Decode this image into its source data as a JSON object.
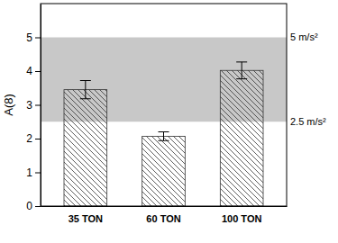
{
  "chart_data": {
    "type": "bar",
    "y_label": "A(8)",
    "categories": [
      "35 TON",
      "60 TON",
      "100 TON"
    ],
    "values": [
      3.45,
      2.07,
      4.02
    ],
    "errors": [
      0.27,
      0.13,
      0.25
    ],
    "color": "#333333",
    "ylim": [
      0,
      6
    ],
    "yticks": [
      0,
      1,
      2,
      3,
      4,
      5
    ],
    "band": [
      2.5,
      5
    ],
    "band_color": "#c8c8c8",
    "annotations": [
      {
        "value": 5,
        "label": "5 m/s²"
      },
      {
        "value": 2.5,
        "label": "2.5 m/s²"
      }
    ],
    "grid": false
  }
}
